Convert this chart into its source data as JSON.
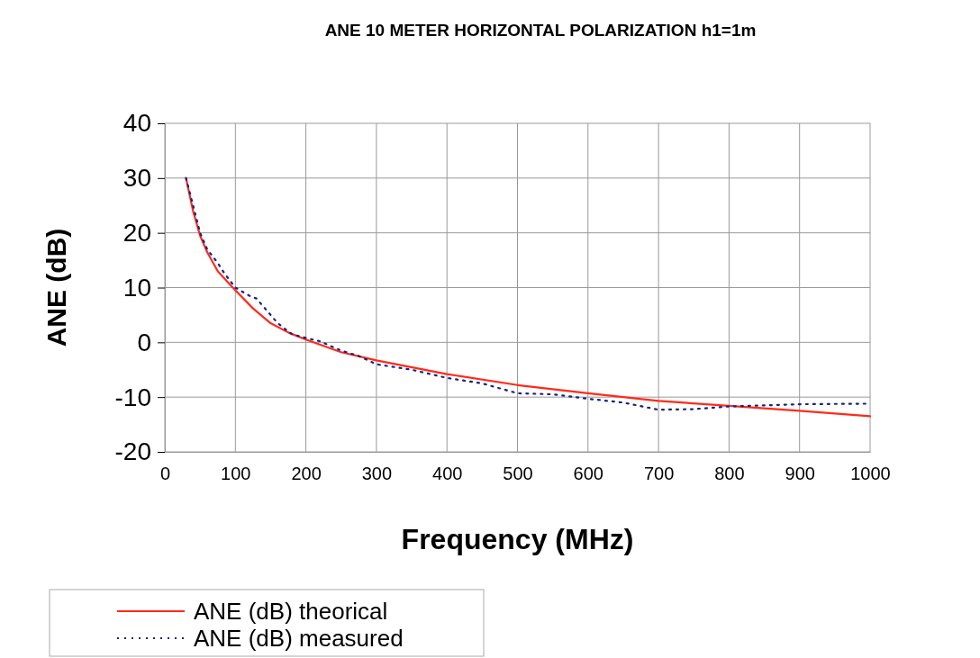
{
  "chart_data": {
    "type": "line",
    "title": "ANE 10 METER HORIZONTAL POLARIZATION h1=1m",
    "xlabel": "Frequency (MHz)",
    "ylabel": "ANE (dB)",
    "xlim": [
      0,
      1000
    ],
    "xticks": [
      0,
      100,
      200,
      300,
      400,
      500,
      600,
      700,
      800,
      900,
      1000
    ],
    "ylim": [
      -20,
      40
    ],
    "yticks": [
      -20,
      -10,
      0,
      10,
      20,
      30,
      40
    ],
    "grid": true,
    "legend": "bottom left",
    "series": [
      {
        "name": "ANE (dB) theorical",
        "color": "#ff2a1a",
        "line_style": "solid",
        "x": [
          30,
          40,
          50,
          60,
          75,
          100,
          125,
          150,
          175,
          200,
          250,
          300,
          400,
          500,
          600,
          700,
          800,
          900,
          1000
        ],
        "values": [
          30,
          24,
          19.5,
          16.5,
          13,
          9.5,
          6.2,
          3.5,
          1.8,
          0.5,
          -1.8,
          -3.3,
          -5.8,
          -7.8,
          -9.3,
          -10.7,
          -11.6,
          -12.5,
          -13.5
        ]
      },
      {
        "name": "ANE (dB) measured",
        "color": "#1a237e",
        "line_style": "dotted",
        "x": [
          30,
          40,
          50,
          60,
          75,
          85,
          100,
          120,
          130,
          140,
          160,
          180,
          200,
          220,
          250,
          275,
          300,
          350,
          400,
          450,
          500,
          550,
          600,
          650,
          700,
          750,
          800,
          850,
          900,
          1000
        ],
        "values": [
          30,
          25,
          20,
          17,
          14.5,
          12.5,
          10,
          8.5,
          8,
          6.5,
          3.5,
          1.5,
          0.8,
          0.2,
          -1.5,
          -2.5,
          -4,
          -5,
          -6.5,
          -7.5,
          -9.3,
          -9.5,
          -10.3,
          -11,
          -12.3,
          -12.2,
          -11.7,
          -11.5,
          -11.3,
          -11.2
        ]
      }
    ]
  }
}
